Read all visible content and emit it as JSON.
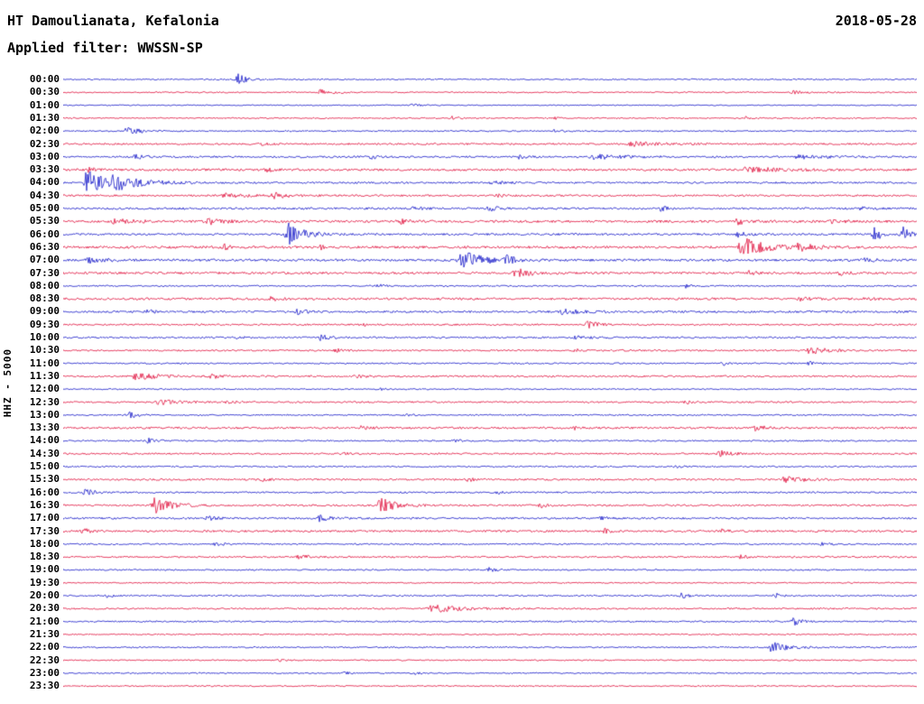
{
  "header": {
    "station": "HT Damoulianata, Kefalonia",
    "date": "2018-05-28",
    "filter": "Applied filter: WWSSN-SP"
  },
  "axis": {
    "left_label": "HHZ - 5000"
  },
  "colors": {
    "blue": "#1518c8",
    "red": "#e0103c"
  },
  "chart_data": {
    "type": "line",
    "subtype": "helicorder-seismogram",
    "start_time": "00:00",
    "interval_minutes": 30,
    "event_format": "[center_fraction_of_row_width, amplitude_px, decay_scale]",
    "rows": [
      {
        "time": "00:00",
        "color": "blue",
        "noise": 0.7,
        "events": [
          [
            0.205,
            6,
            1.5
          ]
        ]
      },
      {
        "time": "00:30",
        "color": "red",
        "noise": 0.7,
        "events": [
          [
            0.3,
            3,
            2.5
          ],
          [
            0.855,
            1.5,
            2
          ]
        ]
      },
      {
        "time": "01:00",
        "color": "blue",
        "noise": 0.6,
        "events": [
          [
            0.41,
            2,
            1
          ]
        ]
      },
      {
        "time": "01:30",
        "color": "red",
        "noise": 0.7,
        "events": [
          [
            0.455,
            2,
            1
          ],
          [
            0.575,
            1.5,
            1
          ],
          [
            0.8,
            1.5,
            1
          ]
        ]
      },
      {
        "time": "02:00",
        "color": "blue",
        "noise": 0.7,
        "events": [
          [
            0.075,
            4,
            2.5
          ],
          [
            0.575,
            1.5,
            1.5
          ]
        ]
      },
      {
        "time": "02:30",
        "color": "red",
        "noise": 1.0,
        "events": [
          [
            0.665,
            2.5,
            5
          ],
          [
            0.23,
            1.5,
            2
          ]
        ]
      },
      {
        "time": "03:00",
        "color": "blue",
        "noise": 1.0,
        "events": [
          [
            0.085,
            2.5,
            2
          ],
          [
            0.36,
            2,
            1.7
          ],
          [
            0.535,
            2,
            1.3
          ],
          [
            0.62,
            2.5,
            6
          ],
          [
            0.86,
            2,
            5
          ]
        ]
      },
      {
        "time": "03:30",
        "color": "red",
        "noise": 1.2,
        "events": [
          [
            0.03,
            2.5,
            1.3
          ],
          [
            0.24,
            2,
            1.3
          ],
          [
            0.8,
            2.5,
            7
          ]
        ]
      },
      {
        "time": "04:00",
        "color": "blue",
        "noise": 1.0,
        "events": [
          [
            0.028,
            14,
            3.5
          ],
          [
            0.06,
            7,
            5
          ],
          [
            0.5,
            2,
            2
          ]
        ]
      },
      {
        "time": "04:30",
        "color": "red",
        "noise": 1.0,
        "events": [
          [
            0.19,
            3,
            3.5
          ],
          [
            0.245,
            3.5,
            2.7
          ],
          [
            0.51,
            2,
            1.3
          ]
        ]
      },
      {
        "time": "05:00",
        "color": "blue",
        "noise": 1.1,
        "events": [
          [
            0.41,
            2.5,
            1.3
          ],
          [
            0.5,
            3,
            1.3
          ],
          [
            0.7,
            2.5,
            1.3
          ],
          [
            0.935,
            2,
            1.3
          ]
        ]
      },
      {
        "time": "05:30",
        "color": "red",
        "noise": 1.3,
        "events": [
          [
            0.17,
            5,
            2
          ],
          [
            0.06,
            2.5,
            3.5
          ],
          [
            0.395,
            2.5,
            1.3
          ],
          [
            0.79,
            3,
            2
          ],
          [
            0.9,
            2.5,
            1.7
          ]
        ]
      },
      {
        "time": "06:00",
        "color": "blue",
        "noise": 1.1,
        "events": [
          [
            0.264,
            12,
            2.7
          ],
          [
            0.95,
            9,
            1.3
          ],
          [
            0.985,
            10,
            1
          ],
          [
            0.79,
            3,
            1.7
          ]
        ]
      },
      {
        "time": "06:30",
        "color": "red",
        "noise": 1.3,
        "events": [
          [
            0.795,
            11,
            4
          ],
          [
            0.86,
            4,
            2.7
          ],
          [
            0.19,
            3,
            1
          ],
          [
            0.3,
            2.5,
            1.3
          ]
        ]
      },
      {
        "time": "07:00",
        "color": "blue",
        "noise": 1.3,
        "events": [
          [
            0.466,
            11,
            3.5
          ],
          [
            0.03,
            3,
            2.7
          ],
          [
            0.52,
            4,
            2
          ],
          [
            0.94,
            2.5,
            1.3
          ]
        ]
      },
      {
        "time": "07:30",
        "color": "red",
        "noise": 1.2,
        "events": [
          [
            0.53,
            5,
            2.7
          ],
          [
            0.805,
            3,
            1
          ],
          [
            0.91,
            2.5,
            1.3
          ]
        ]
      },
      {
        "time": "08:00",
        "color": "blue",
        "noise": 0.8,
        "events": [
          [
            0.37,
            2,
            1
          ],
          [
            0.73,
            2,
            1
          ]
        ]
      },
      {
        "time": "08:30",
        "color": "red",
        "noise": 1.2,
        "events": [
          [
            0.245,
            2.5,
            1.7
          ],
          [
            0.865,
            2.5,
            1.7
          ],
          [
            0.94,
            2,
            1.3
          ]
        ]
      },
      {
        "time": "09:00",
        "color": "blue",
        "noise": 1.1,
        "events": [
          [
            0.275,
            2.5,
            1.7
          ],
          [
            0.585,
            2.5,
            4
          ],
          [
            0.1,
            2,
            1.3
          ]
        ]
      },
      {
        "time": "09:30",
        "color": "red",
        "noise": 0.9,
        "events": [
          [
            0.615,
            3.5,
            2
          ],
          [
            0.35,
            1.5,
            1
          ]
        ]
      },
      {
        "time": "10:00",
        "color": "blue",
        "noise": 0.9,
        "events": [
          [
            0.3,
            4,
            1.7
          ],
          [
            0.205,
            2,
            1
          ],
          [
            0.6,
            2,
            2.7
          ]
        ]
      },
      {
        "time": "10:30",
        "color": "red",
        "noise": 0.9,
        "events": [
          [
            0.873,
            4,
            3.5
          ],
          [
            0.32,
            2,
            1.3
          ],
          [
            0.6,
            1.5,
            1.3
          ]
        ]
      },
      {
        "time": "11:00",
        "color": "blue",
        "noise": 0.8,
        "events": [
          [
            0.775,
            2,
            1
          ],
          [
            0.875,
            2,
            1
          ]
        ]
      },
      {
        "time": "11:30",
        "color": "red",
        "noise": 1.0,
        "events": [
          [
            0.085,
            4,
            4
          ],
          [
            0.175,
            2.5,
            1.3
          ],
          [
            0.345,
            2,
            1.3
          ]
        ]
      },
      {
        "time": "12:00",
        "color": "blue",
        "noise": 0.7,
        "events": [
          [
            0.37,
            1.5,
            1
          ]
        ]
      },
      {
        "time": "12:30",
        "color": "red",
        "noise": 0.9,
        "events": [
          [
            0.112,
            3.5,
            2.7
          ],
          [
            0.19,
            2,
            1.7
          ],
          [
            0.73,
            1.5,
            1.3
          ]
        ]
      },
      {
        "time": "13:00",
        "color": "blue",
        "noise": 0.8,
        "events": [
          [
            0.079,
            3,
            1.3
          ],
          [
            0.4,
            1.5,
            1
          ]
        ]
      },
      {
        "time": "13:30",
        "color": "red",
        "noise": 1.1,
        "events": [
          [
            0.81,
            3,
            2
          ],
          [
            0.35,
            2,
            1.3
          ],
          [
            0.6,
            2,
            1.3
          ]
        ]
      },
      {
        "time": "14:00",
        "color": "blue",
        "noise": 0.8,
        "events": [
          [
            0.1,
            3,
            1.3
          ],
          [
            0.46,
            1.5,
            1
          ]
        ]
      },
      {
        "time": "14:30",
        "color": "red",
        "noise": 0.9,
        "events": [
          [
            0.77,
            3.5,
            2
          ],
          [
            0.33,
            1.5,
            1
          ]
        ]
      },
      {
        "time": "15:00",
        "color": "blue",
        "noise": 0.8,
        "events": [
          [
            0.72,
            1.5,
            1
          ]
        ]
      },
      {
        "time": "15:30",
        "color": "red",
        "noise": 1.0,
        "events": [
          [
            0.845,
            3.5,
            3.5
          ],
          [
            0.475,
            2,
            1.3
          ],
          [
            0.235,
            1.5,
            1
          ]
        ]
      },
      {
        "time": "16:00",
        "color": "blue",
        "noise": 0.9,
        "events": [
          [
            0.026,
            3.5,
            2
          ],
          [
            0.51,
            1.5,
            1
          ]
        ]
      },
      {
        "time": "16:30",
        "color": "red",
        "noise": 1.0,
        "events": [
          [
            0.107,
            10,
            2.7
          ],
          [
            0.372,
            8,
            2.7
          ],
          [
            0.56,
            2,
            1.3
          ]
        ]
      },
      {
        "time": "17:00",
        "color": "blue",
        "noise": 1.0,
        "events": [
          [
            0.3,
            3.5,
            2
          ],
          [
            0.17,
            2.5,
            1.7
          ],
          [
            0.63,
            2,
            1.3
          ]
        ]
      },
      {
        "time": "17:30",
        "color": "red",
        "noise": 1.1,
        "events": [
          [
            0.025,
            2.5,
            1.3
          ],
          [
            0.635,
            2.5,
            1.3
          ],
          [
            0.77,
            2,
            1.3
          ]
        ]
      },
      {
        "time": "18:00",
        "color": "blue",
        "noise": 0.8,
        "events": [
          [
            0.18,
            2.5,
            1
          ],
          [
            0.89,
            2,
            1
          ]
        ]
      },
      {
        "time": "18:30",
        "color": "red",
        "noise": 0.9,
        "events": [
          [
            0.277,
            3,
            2
          ],
          [
            0.795,
            2,
            1
          ]
        ]
      },
      {
        "time": "19:00",
        "color": "blue",
        "noise": 0.8,
        "events": [
          [
            0.5,
            2.5,
            1
          ]
        ]
      },
      {
        "time": "19:30",
        "color": "red",
        "noise": 0.7,
        "events": []
      },
      {
        "time": "20:00",
        "color": "blue",
        "noise": 0.8,
        "events": [
          [
            0.053,
            2,
            1
          ],
          [
            0.725,
            3,
            1
          ],
          [
            0.835,
            2.5,
            1
          ]
        ]
      },
      {
        "time": "20:30",
        "color": "red",
        "noise": 0.9,
        "events": [
          [
            0.432,
            4,
            5
          ]
        ]
      },
      {
        "time": "21:00",
        "color": "blue",
        "noise": 0.8,
        "events": [
          [
            0.855,
            5,
            1.3
          ]
        ]
      },
      {
        "time": "21:30",
        "color": "red",
        "noise": 0.7,
        "events": []
      },
      {
        "time": "22:00",
        "color": "blue",
        "noise": 0.8,
        "events": [
          [
            0.83,
            6,
            2.7
          ]
        ]
      },
      {
        "time": "22:30",
        "color": "red",
        "noise": 0.7,
        "events": [
          [
            0.255,
            1.5,
            1
          ]
        ]
      },
      {
        "time": "23:00",
        "color": "blue",
        "noise": 0.7,
        "events": [
          [
            0.33,
            1.5,
            1
          ],
          [
            0.41,
            1.5,
            1
          ]
        ]
      },
      {
        "time": "23:30",
        "color": "red",
        "noise": 0.7,
        "events": []
      }
    ]
  }
}
